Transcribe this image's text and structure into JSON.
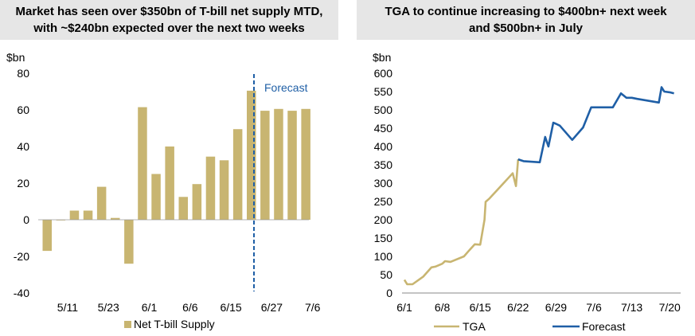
{
  "chart_data": [
    {
      "type": "bar",
      "title_lines": [
        "Market has seen over $350bn of T-bill net supply MTD,",
        "with ~$240bn expected over the next two weeks"
      ],
      "ylabel": "$bn",
      "ylim": [
        -40,
        80
      ],
      "yticks": [
        80,
        60,
        40,
        20,
        0,
        -20,
        -40
      ],
      "ytick_labels": [
        "80",
        "60",
        "40",
        "20",
        "0",
        "-20",
        "-40"
      ],
      "xtick_labels": [
        "5/11",
        "5/23",
        "6/1",
        "6/6",
        "6/15",
        "6/27",
        "7/6"
      ],
      "xtick_positions": [
        1,
        4,
        7,
        10,
        13,
        16,
        19
      ],
      "values": [
        -17,
        0,
        5,
        5,
        18,
        1,
        -24,
        61.5,
        25,
        40,
        12.5,
        19.5,
        34.5,
        32.5,
        49.5,
        70.5,
        59.5,
        60.5,
        59.5,
        60.5
      ],
      "forecast_start_index": 16,
      "forecast_label": "Forecast",
      "legend": [
        {
          "name": "Net T-bill Supply",
          "color": "#c8b571"
        }
      ],
      "legend_position": "bottom",
      "grid": false,
      "colors": {
        "bar": "#c8b571",
        "forecast_line": "#1f5fa6",
        "forecast_text": "#1f5fa6"
      }
    },
    {
      "type": "line",
      "title_lines": [
        "TGA to continue increasing to $400bn+ next week",
        "and $500bn+ in July"
      ],
      "ylabel": "$bn",
      "ylim": [
        0,
        600
      ],
      "yticks": [
        600,
        550,
        500,
        450,
        400,
        350,
        300,
        250,
        200,
        150,
        100,
        50,
        0
      ],
      "ytick_labels": [
        "600",
        "550",
        "500",
        "450",
        "400",
        "350",
        "300",
        "250",
        "200",
        "150",
        "100",
        "50",
        "0"
      ],
      "xlim": [
        0,
        50
      ],
      "xticks": [
        0,
        7,
        14,
        21,
        28,
        35,
        42,
        49
      ],
      "xtick_labels": [
        "6/1",
        "6/8",
        "6/15",
        "6/22",
        "6/29",
        "7/6",
        "7/13",
        "7/20"
      ],
      "series": [
        {
          "name": "TGA",
          "color": "#c8b571",
          "x": [
            0,
            0.5,
            1.5,
            3.5,
            5,
            5.7,
            7,
            7.5,
            8.5,
            11,
            12,
            13,
            14,
            14.8,
            15,
            15.7,
            20,
            20.6,
            21
          ],
          "y": [
            36,
            24,
            24,
            45,
            70,
            72,
            80,
            87,
            85,
            100,
            117,
            133,
            132,
            200,
            249,
            258,
            327,
            292,
            365
          ]
        },
        {
          "name": "Forecast",
          "color": "#1f5fa6",
          "x": [
            21,
            22,
            25,
            26,
            26.6,
            27.5,
            28,
            28.7,
            31,
            33,
            34.5,
            35.5,
            38.5,
            40,
            41,
            42,
            43,
            47,
            47.5,
            48,
            49,
            49.8
          ],
          "y": [
            365,
            360,
            357,
            426,
            400,
            465,
            462,
            457,
            418,
            452,
            507,
            507,
            507,
            545,
            533,
            533,
            530,
            520,
            562,
            550,
            548,
            545
          ]
        }
      ],
      "legend_position": "bottom",
      "grid": false
    }
  ]
}
